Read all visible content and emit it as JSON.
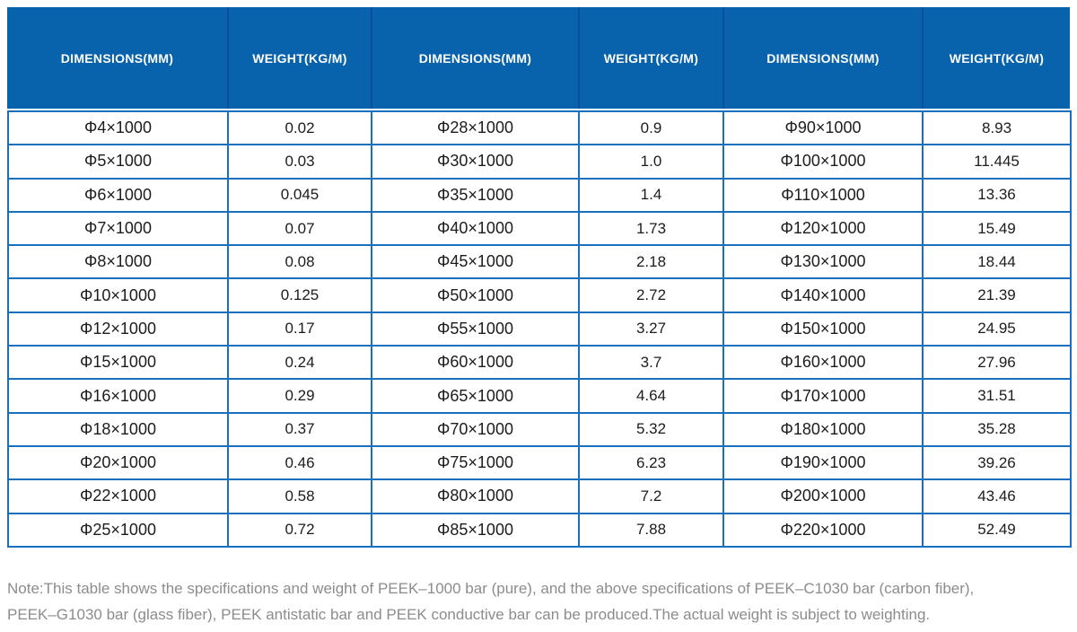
{
  "table": {
    "header": {
      "dimensions_label": "DIMENSIONS(MM)",
      "weight_label": "WEIGHT(KG/M)"
    },
    "column_order": [
      "dimensions",
      "weight",
      "dimensions",
      "weight",
      "dimensions",
      "weight"
    ],
    "rows": [
      [
        "Φ4×1000",
        "0.02",
        "Φ28×1000",
        "0.9",
        "Φ90×1000",
        "8.93"
      ],
      [
        "Φ5×1000",
        "0.03",
        "Φ30×1000",
        "1.0",
        "Φ100×1000",
        "11.445"
      ],
      [
        "Φ6×1000",
        "0.045",
        "Φ35×1000",
        "1.4",
        "Φ110×1000",
        "13.36"
      ],
      [
        "Φ7×1000",
        "0.07",
        "Φ40×1000",
        "1.73",
        "Φ120×1000",
        "15.49"
      ],
      [
        "Φ8×1000",
        "0.08",
        "Φ45×1000",
        "2.18",
        "Φ130×1000",
        "18.44"
      ],
      [
        "Φ10×1000",
        "0.125",
        "Φ50×1000",
        "2.72",
        "Φ140×1000",
        "21.39"
      ],
      [
        "Φ12×1000",
        "0.17",
        "Φ55×1000",
        "3.27",
        "Φ150×1000",
        "24.95"
      ],
      [
        "Φ15×1000",
        "0.24",
        "Φ60×1000",
        "3.7",
        "Φ160×1000",
        "27.96"
      ],
      [
        "Φ16×1000",
        "0.29",
        "Φ65×1000",
        "4.64",
        "Φ170×1000",
        "31.51"
      ],
      [
        "Φ18×1000",
        "0.37",
        "Φ70×1000",
        "5.32",
        "Φ180×1000",
        "35.28"
      ],
      [
        "Φ20×1000",
        "0.46",
        "Φ75×1000",
        "6.23",
        "Φ190×1000",
        "39.26"
      ],
      [
        "Φ22×1000",
        "0.58",
        "Φ80×1000",
        "7.2",
        "Φ200×1000",
        "43.46"
      ],
      [
        "Φ25×1000",
        "0.72",
        "Φ85×1000",
        "7.88",
        "Φ220×1000",
        "52.49"
      ]
    ]
  },
  "note": {
    "line1": "Note:This table shows the specifications and weight of PEEK–1000 bar (pure), and the above specifications of PEEK–C1030 bar (carbon fiber),",
    "line2": "PEEK–G1030 bar (glass fiber), PEEK antistatic bar and PEEK conductive bar can be produced.The actual weight is subject to weighting."
  },
  "colors": {
    "header_bg": "#0862ac",
    "header_divider": "#07519c",
    "grid_border": "#1a70bd",
    "note_color": "#8c8c8c"
  }
}
